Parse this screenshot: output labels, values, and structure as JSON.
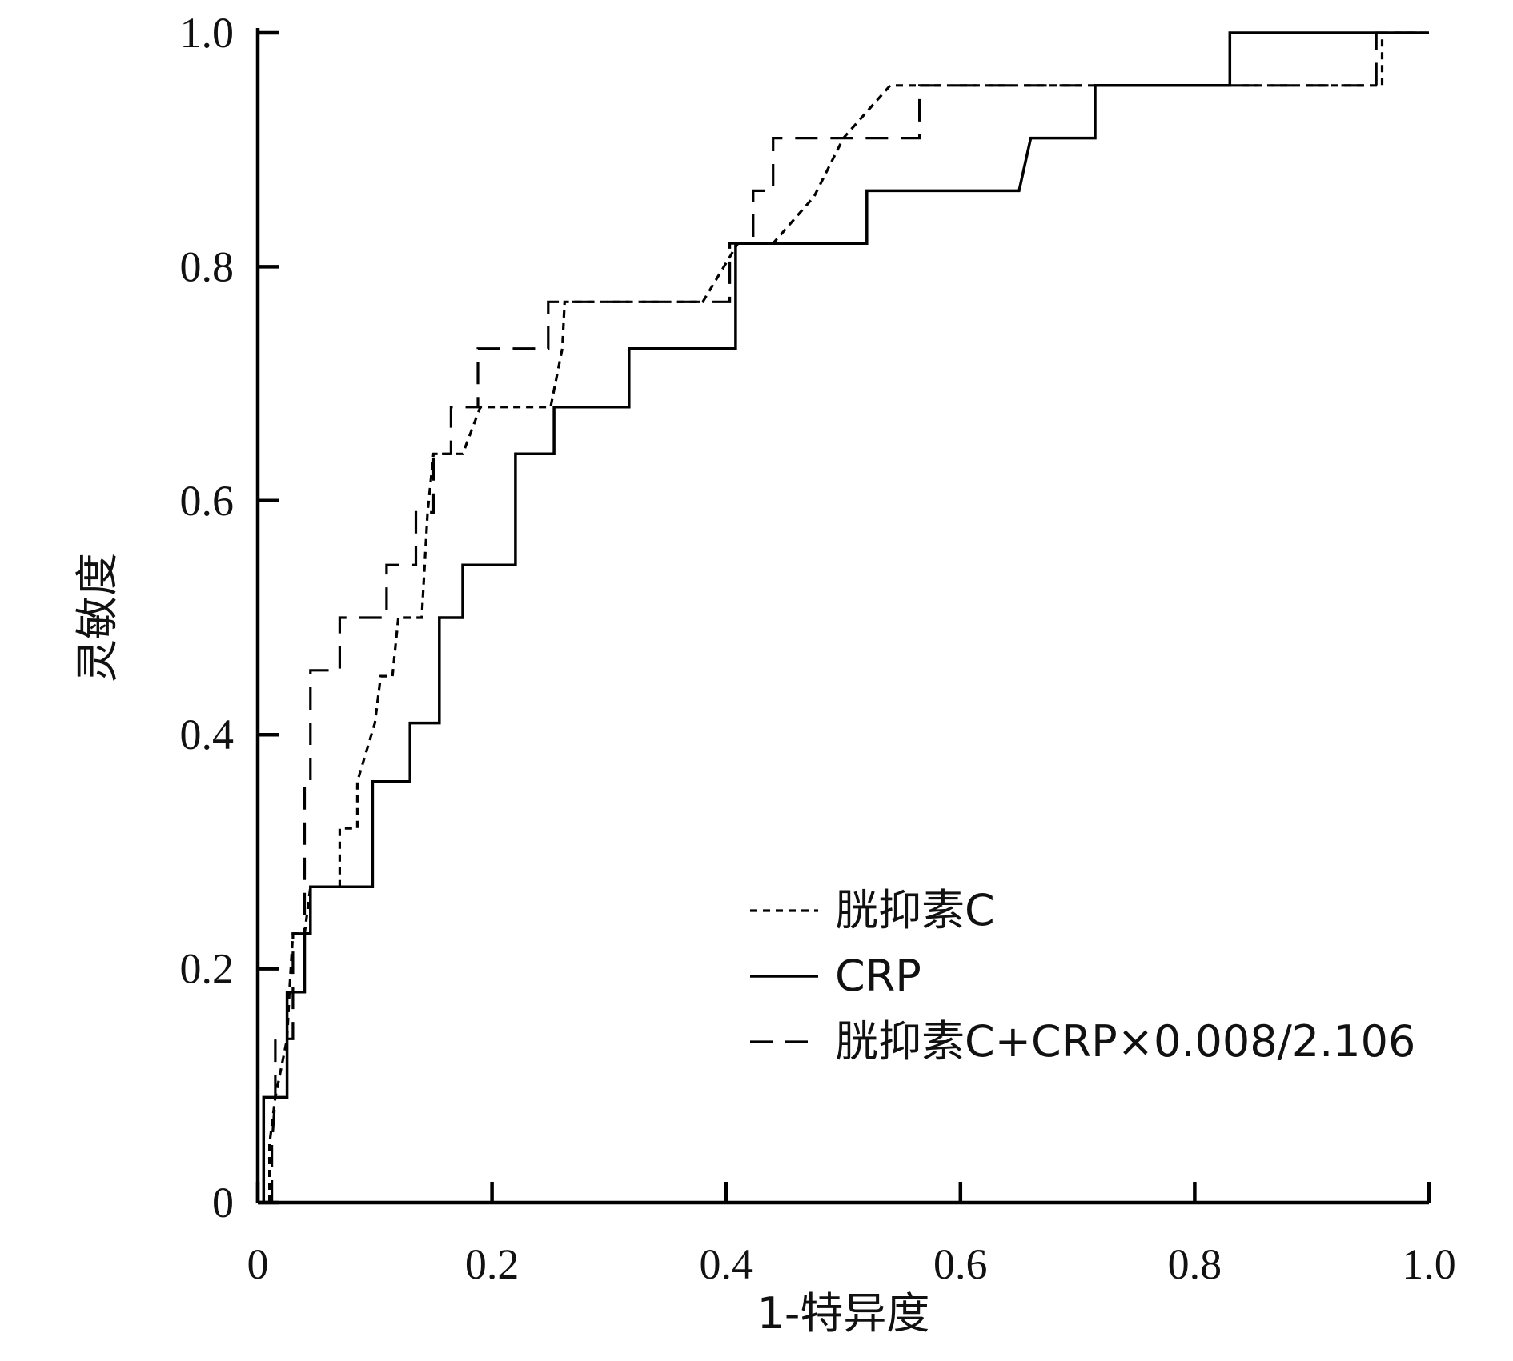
{
  "chart_data": {
    "type": "line",
    "title": "",
    "xlabel": "1-特异度",
    "ylabel": "灵敏度",
    "xlim": [
      0,
      1.0
    ],
    "ylim": [
      0,
      1.0
    ],
    "x_ticks": [
      0,
      0.2,
      0.4,
      0.6,
      0.8,
      1.0
    ],
    "y_ticks": [
      0,
      0.2,
      0.4,
      0.6,
      0.8,
      1.0
    ],
    "x_tick_labels": [
      "0",
      "0.2",
      "0.4",
      "0.6",
      "0.8",
      "1.0"
    ],
    "y_tick_labels": [
      "0",
      "0.2",
      "0.4",
      "0.6",
      "0.8",
      "1.0"
    ],
    "grid": false,
    "legend_position": "bottom-right",
    "series": [
      {
        "name": "胱抑素C",
        "line_style": "dotted",
        "color": "#000000",
        "points": [
          [
            0.01,
            0.0
          ],
          [
            0.01,
            0.05
          ],
          [
            0.015,
            0.09
          ],
          [
            0.025,
            0.14
          ],
          [
            0.027,
            0.18
          ],
          [
            0.03,
            0.23
          ],
          [
            0.04,
            0.23
          ],
          [
            0.045,
            0.27
          ],
          [
            0.07,
            0.27
          ],
          [
            0.07,
            0.32
          ],
          [
            0.085,
            0.32
          ],
          [
            0.085,
            0.36
          ],
          [
            0.1,
            0.41
          ],
          [
            0.105,
            0.45
          ],
          [
            0.115,
            0.45
          ],
          [
            0.12,
            0.5
          ],
          [
            0.14,
            0.5
          ],
          [
            0.145,
            0.59
          ],
          [
            0.15,
            0.64
          ],
          [
            0.175,
            0.64
          ],
          [
            0.19,
            0.68
          ],
          [
            0.25,
            0.68
          ],
          [
            0.26,
            0.73
          ],
          [
            0.262,
            0.77
          ],
          [
            0.38,
            0.77
          ],
          [
            0.41,
            0.82
          ],
          [
            0.44,
            0.82
          ],
          [
            0.475,
            0.86
          ],
          [
            0.5,
            0.91
          ],
          [
            0.54,
            0.955
          ],
          [
            0.96,
            0.955
          ],
          [
            0.96,
            1.0
          ],
          [
            1.0,
            1.0
          ]
        ]
      },
      {
        "name": "CRP",
        "line_style": "solid",
        "color": "#000000",
        "points": [
          [
            0.005,
            0.0
          ],
          [
            0.005,
            0.09
          ],
          [
            0.025,
            0.09
          ],
          [
            0.025,
            0.18
          ],
          [
            0.04,
            0.18
          ],
          [
            0.04,
            0.23
          ],
          [
            0.045,
            0.23
          ],
          [
            0.045,
            0.27
          ],
          [
            0.098,
            0.27
          ],
          [
            0.098,
            0.36
          ],
          [
            0.13,
            0.36
          ],
          [
            0.13,
            0.41
          ],
          [
            0.155,
            0.41
          ],
          [
            0.155,
            0.5
          ],
          [
            0.175,
            0.5
          ],
          [
            0.175,
            0.545
          ],
          [
            0.22,
            0.545
          ],
          [
            0.22,
            0.64
          ],
          [
            0.253,
            0.64
          ],
          [
            0.253,
            0.68
          ],
          [
            0.317,
            0.68
          ],
          [
            0.317,
            0.73
          ],
          [
            0.408,
            0.73
          ],
          [
            0.408,
            0.82
          ],
          [
            0.52,
            0.82
          ],
          [
            0.52,
            0.865
          ],
          [
            0.65,
            0.865
          ],
          [
            0.66,
            0.91
          ],
          [
            0.715,
            0.91
          ],
          [
            0.715,
            0.955
          ],
          [
            0.83,
            0.955
          ],
          [
            0.83,
            1.0
          ],
          [
            1.0,
            1.0
          ]
        ]
      },
      {
        "name": "胱抑素C+CRP×0.008/2.106",
        "line_style": "dashed",
        "color": "#000000",
        "points": [
          [
            0.012,
            0.0
          ],
          [
            0.012,
            0.05
          ],
          [
            0.015,
            0.09
          ],
          [
            0.015,
            0.14
          ],
          [
            0.03,
            0.14
          ],
          [
            0.03,
            0.23
          ],
          [
            0.04,
            0.23
          ],
          [
            0.04,
            0.36
          ],
          [
            0.045,
            0.36
          ],
          [
            0.045,
            0.455
          ],
          [
            0.07,
            0.455
          ],
          [
            0.07,
            0.5
          ],
          [
            0.11,
            0.5
          ],
          [
            0.11,
            0.545
          ],
          [
            0.135,
            0.545
          ],
          [
            0.135,
            0.59
          ],
          [
            0.15,
            0.59
          ],
          [
            0.15,
            0.64
          ],
          [
            0.165,
            0.64
          ],
          [
            0.165,
            0.68
          ],
          [
            0.188,
            0.68
          ],
          [
            0.188,
            0.73
          ],
          [
            0.248,
            0.73
          ],
          [
            0.248,
            0.77
          ],
          [
            0.403,
            0.77
          ],
          [
            0.403,
            0.82
          ],
          [
            0.423,
            0.82
          ],
          [
            0.423,
            0.865
          ],
          [
            0.44,
            0.865
          ],
          [
            0.44,
            0.91
          ],
          [
            0.565,
            0.91
          ],
          [
            0.565,
            0.955
          ],
          [
            0.955,
            0.955
          ],
          [
            0.955,
            1.0
          ],
          [
            1.0,
            1.0
          ]
        ]
      }
    ]
  }
}
